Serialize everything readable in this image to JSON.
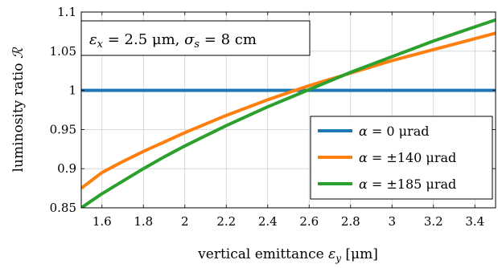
{
  "chart_data": {
    "type": "line",
    "xlabel_prefix": "vertical emittance ",
    "xlabel_symbol": "ε",
    "xlabel_sub": "y",
    "xlabel_unit": " [μm]",
    "ylabel_prefix": "luminosity ratio ",
    "ylabel_symbol": "ℛ",
    "xlim": [
      1.5,
      3.5
    ],
    "ylim": [
      0.85,
      1.1
    ],
    "xticks": [
      1.6,
      1.8,
      2,
      2.2,
      2.4,
      2.6,
      2.8,
      3,
      3.2,
      3.4
    ],
    "xtick_labels": [
      "1.6",
      "1.8",
      "2",
      "2.2",
      "2.4",
      "2.6",
      "2.8",
      "3",
      "3.2",
      "3.4"
    ],
    "yticks": [
      0.85,
      0.9,
      0.95,
      1,
      1.05,
      1.1
    ],
    "ytick_labels": [
      "0.85",
      "0.9",
      "0.95",
      "1",
      "1.05",
      "1.1"
    ],
    "grid": true,
    "legend_position": "bottom-right",
    "annotation": {
      "eps_symbol": "ε",
      "eps_sub": "x",
      "eps_value": " = 2.5 μm, ",
      "sigma_symbol": "σ",
      "sigma_sub": "s",
      "sigma_value": " = 8 cm"
    },
    "x": [
      1.5,
      1.6,
      1.7,
      1.8,
      1.9,
      2.0,
      2.1,
      2.2,
      2.3,
      2.4,
      2.5,
      2.6,
      2.7,
      2.8,
      2.9,
      3.0,
      3.1,
      3.2,
      3.3,
      3.4,
      3.5
    ],
    "series": [
      {
        "name": "α = 0 μrad",
        "legend_symbol": "α",
        "legend_value": " = 0 μrad",
        "color": "#1f77b4",
        "values": [
          1,
          1,
          1,
          1,
          1,
          1,
          1,
          1,
          1,
          1,
          1,
          1,
          1,
          1,
          1,
          1,
          1,
          1,
          1,
          1,
          1
        ]
      },
      {
        "name": "α = ±140 μrad",
        "legend_symbol": "α",
        "legend_value": " = ±140 μrad",
        "color": "#ff7f0e",
        "values": [
          0.875,
          0.895,
          0.909,
          0.922,
          0.934,
          0.946,
          0.957,
          0.968,
          0.978,
          0.988,
          0.997,
          1.006,
          1.014,
          1.022,
          1.03,
          1.038,
          1.045,
          1.052,
          1.059,
          1.066,
          1.073
        ]
      },
      {
        "name": "α = ±185 μrad",
        "legend_symbol": "α",
        "legend_value": " = ±185 μrad",
        "color": "#2ca02c",
        "values": [
          0.85,
          0.868,
          0.884,
          0.9,
          0.915,
          0.929,
          0.942,
          0.955,
          0.967,
          0.979,
          0.99,
          1.001,
          1.012,
          1.023,
          1.033,
          1.043,
          1.053,
          1.063,
          1.072,
          1.081,
          1.09
        ]
      }
    ]
  }
}
